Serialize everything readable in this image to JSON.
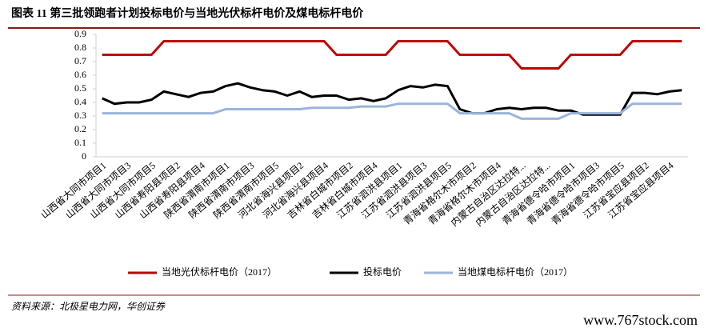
{
  "chart_data": {
    "type": "line",
    "title": "图表 11   第三批领跑者计划投标电价与当地光伏标杆电价及煤电标杆电价",
    "source": "资料来源：北极星电力网，华创证券",
    "watermark": "www.767stock.com",
    "categories": [
      "山西省大同市项目1",
      null,
      "山西省大同市项目3",
      null,
      "山西省大同市项目5",
      null,
      "山西省寿阳县项目2",
      null,
      "山西省寿阳县项目4",
      null,
      "陕西省渭南市项目1",
      null,
      "陕西省渭南市项目3",
      null,
      "陕西省渭南市项目5",
      null,
      "河北省海兴县项目2",
      null,
      "河北省海兴县项目4",
      null,
      "吉林省白城市项目2",
      null,
      "吉林省白城市项目4",
      null,
      "江苏省泗洪县项目1",
      null,
      "江苏省泗洪县项目3",
      null,
      "江苏省泗洪县项目5",
      null,
      "青海省格尔木市项目2",
      null,
      "青海省格尔木市项目4",
      null,
      "内蒙古自治区达拉特...",
      null,
      "内蒙古自治区达拉特...",
      null,
      "青海省德令哈市项目1",
      null,
      "青海省德令哈市项目3",
      null,
      "青海省德令哈市项目5",
      null,
      "江苏省宝应县项目2",
      null,
      "江苏省宝应县项目4",
      null
    ],
    "series": [
      {
        "name": "当地光伏标杆电价（2017）",
        "color": "#c00000",
        "values": [
          0.75,
          0.75,
          0.75,
          0.75,
          0.75,
          0.85,
          0.85,
          0.85,
          0.85,
          0.85,
          0.85,
          0.85,
          0.85,
          0.85,
          0.85,
          0.85,
          0.85,
          0.85,
          0.85,
          0.75,
          0.75,
          0.75,
          0.75,
          0.75,
          0.85,
          0.85,
          0.85,
          0.85,
          0.85,
          0.75,
          0.75,
          0.75,
          0.75,
          0.75,
          0.65,
          0.65,
          0.65,
          0.65,
          0.75,
          0.75,
          0.75,
          0.75,
          0.75,
          0.85,
          0.85,
          0.85,
          0.85,
          0.85
        ]
      },
      {
        "name": "投标电价",
        "color": "#000000",
        "values": [
          0.43,
          0.39,
          0.4,
          0.4,
          0.42,
          0.48,
          0.46,
          0.44,
          0.47,
          0.48,
          0.52,
          0.54,
          0.51,
          0.49,
          0.48,
          0.45,
          0.48,
          0.44,
          0.45,
          0.45,
          0.42,
          0.43,
          0.41,
          0.43,
          0.49,
          0.52,
          0.51,
          0.53,
          0.52,
          0.35,
          0.32,
          0.32,
          0.35,
          0.36,
          0.35,
          0.36,
          0.36,
          0.34,
          0.34,
          0.31,
          0.31,
          0.31,
          0.31,
          0.47,
          0.47,
          0.46,
          0.48,
          0.49
        ]
      },
      {
        "name": "当地煤电标杆电价（2017）",
        "color": "#9ab4dc",
        "values": [
          0.32,
          0.32,
          0.32,
          0.32,
          0.32,
          0.32,
          0.32,
          0.32,
          0.32,
          0.32,
          0.35,
          0.35,
          0.35,
          0.35,
          0.35,
          0.35,
          0.35,
          0.36,
          0.36,
          0.36,
          0.36,
          0.37,
          0.37,
          0.37,
          0.39,
          0.39,
          0.39,
          0.39,
          0.39,
          0.32,
          0.32,
          0.32,
          0.32,
          0.32,
          0.28,
          0.28,
          0.28,
          0.28,
          0.32,
          0.32,
          0.32,
          0.32,
          0.32,
          0.39,
          0.39,
          0.39,
          0.39,
          0.39
        ]
      }
    ],
    "ylim": [
      0,
      0.9
    ],
    "yticks": [
      0,
      0.1,
      0.2,
      0.3,
      0.4,
      0.5,
      0.6,
      0.7,
      0.8,
      0.9
    ],
    "grid": false
  }
}
